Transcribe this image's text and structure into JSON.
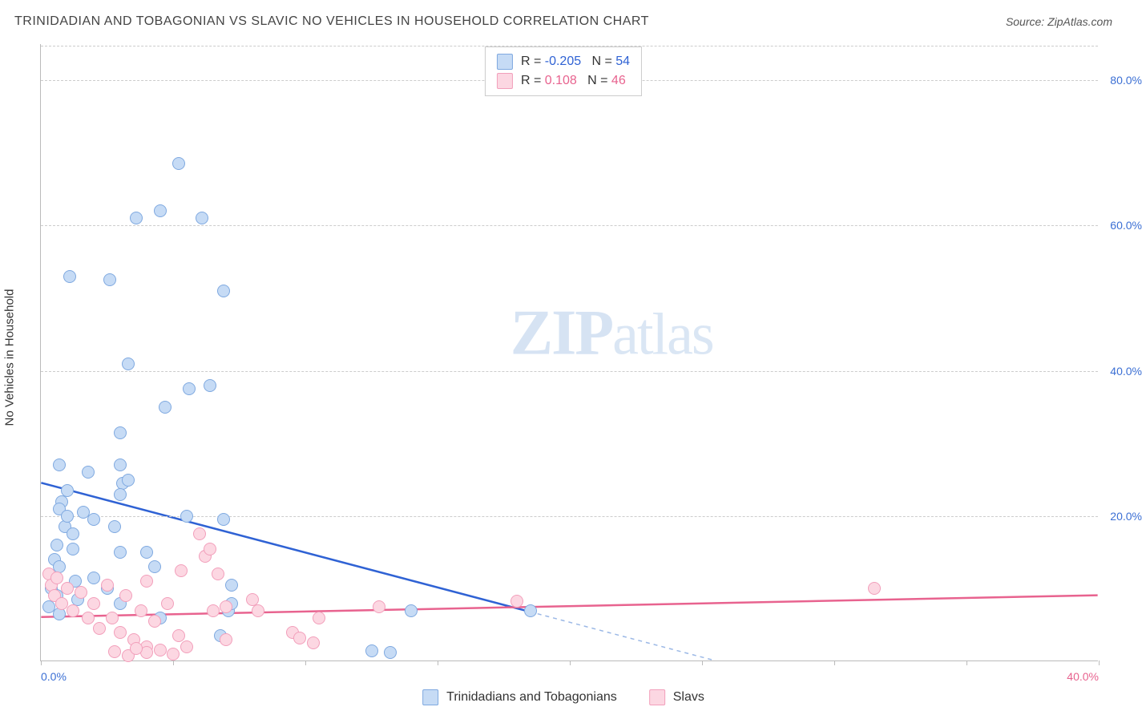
{
  "title": "TRINIDADIAN AND TOBAGONIAN VS SLAVIC NO VEHICLES IN HOUSEHOLD CORRELATION CHART",
  "source": "Source: ZipAtlas.com",
  "y_label": "No Vehicles in Household",
  "watermark": {
    "part1": "ZIP",
    "part2": "atlas"
  },
  "chart": {
    "type": "scatter",
    "xlim": [
      0,
      40
    ],
    "ylim": [
      0,
      85
    ],
    "x_ticks": [
      0,
      5,
      10,
      15,
      20,
      25,
      30,
      35,
      40
    ],
    "x_tick_labels": {
      "0": "0.0%",
      "40": "40.0%"
    },
    "y_ticks": [
      20,
      40,
      60,
      80
    ],
    "y_tick_labels": {
      "20": "20.0%",
      "40": "40.0%",
      "60": "60.0%",
      "80": "80.0%"
    },
    "y_tick_color": "#3b6fd4",
    "x_tick_color_left": "#3b6fd4",
    "x_tick_color_right": "#e8638f",
    "grid_color": "#cccccc",
    "background": "#ffffff",
    "marker_radius": 8,
    "marker_border_width": 1.5,
    "series": [
      {
        "name": "Trinidadians and Tobagonians",
        "fill": "#c6dbf5",
        "stroke": "#7fa9e0",
        "trend_color": "#2f62d4",
        "trend_dash_color": "#9bb8e6",
        "R": "-0.205",
        "N": "54",
        "trend": {
          "x1": 0,
          "y1": 24.5,
          "x2": 25.5,
          "y2": 0,
          "solid_until_x": 18.5
        },
        "points": [
          [
            5.2,
            68.5
          ],
          [
            3.6,
            61.0
          ],
          [
            4.5,
            62.0
          ],
          [
            6.1,
            61.0
          ],
          [
            1.1,
            53.0
          ],
          [
            2.6,
            52.5
          ],
          [
            6.9,
            51.0
          ],
          [
            3.3,
            41.0
          ],
          [
            5.6,
            37.5
          ],
          [
            4.7,
            35.0
          ],
          [
            6.4,
            38.0
          ],
          [
            3.0,
            31.5
          ],
          [
            0.7,
            27.0
          ],
          [
            3.0,
            27.0
          ],
          [
            3.1,
            24.5
          ],
          [
            3.3,
            25.0
          ],
          [
            0.8,
            22.0
          ],
          [
            3.0,
            23.0
          ],
          [
            0.7,
            21.0
          ],
          [
            1.6,
            20.5
          ],
          [
            0.9,
            18.5
          ],
          [
            1.0,
            20.0
          ],
          [
            1.2,
            17.5
          ],
          [
            0.6,
            16.0
          ],
          [
            0.5,
            14.0
          ],
          [
            0.7,
            13.0
          ],
          [
            1.2,
            15.5
          ],
          [
            2.0,
            19.5
          ],
          [
            2.8,
            18.5
          ],
          [
            3.0,
            15.0
          ],
          [
            4.0,
            15.0
          ],
          [
            4.3,
            13.0
          ],
          [
            1.3,
            11.0
          ],
          [
            2.0,
            11.5
          ],
          [
            0.4,
            10.0
          ],
          [
            0.6,
            9.0
          ],
          [
            1.4,
            8.5
          ],
          [
            2.5,
            10.0
          ],
          [
            3.0,
            8.0
          ],
          [
            0.7,
            6.5
          ],
          [
            0.3,
            7.5
          ],
          [
            4.5,
            6.0
          ],
          [
            7.1,
            7.0
          ],
          [
            6.8,
            3.5
          ],
          [
            7.2,
            10.5
          ],
          [
            14.0,
            7.0
          ],
          [
            12.5,
            1.4
          ],
          [
            13.2,
            1.2
          ],
          [
            18.5,
            6.9
          ],
          [
            7.2,
            8.0
          ],
          [
            1.0,
            23.5
          ],
          [
            1.8,
            26.0
          ],
          [
            5.5,
            20.0
          ],
          [
            6.9,
            19.5
          ]
        ]
      },
      {
        "name": "Slavs",
        "fill": "#fcd7e2",
        "stroke": "#f29fbb",
        "trend_color": "#e8638f",
        "R": "0.108",
        "N": "46",
        "trend": {
          "x1": 0,
          "y1": 6.0,
          "x2": 40,
          "y2": 9.0,
          "solid_until_x": 40
        },
        "points": [
          [
            0.3,
            12.0
          ],
          [
            0.4,
            10.5
          ],
          [
            0.5,
            9.0
          ],
          [
            0.6,
            11.5
          ],
          [
            0.8,
            8.0
          ],
          [
            1.0,
            10.0
          ],
          [
            1.2,
            7.0
          ],
          [
            1.5,
            9.5
          ],
          [
            1.8,
            6.0
          ],
          [
            2.0,
            8.0
          ],
          [
            2.2,
            4.5
          ],
          [
            2.5,
            10.5
          ],
          [
            2.7,
            6.0
          ],
          [
            3.0,
            4.0
          ],
          [
            3.2,
            9.0
          ],
          [
            3.5,
            3.0
          ],
          [
            3.8,
            7.0
          ],
          [
            4.0,
            2.0
          ],
          [
            4.3,
            5.5
          ],
          [
            4.5,
            1.5
          ],
          [
            4.8,
            8.0
          ],
          [
            5.2,
            3.5
          ],
          [
            5.5,
            2.0
          ],
          [
            4.0,
            11.0
          ],
          [
            6.0,
            17.5
          ],
          [
            6.2,
            14.5
          ],
          [
            6.4,
            15.5
          ],
          [
            7.0,
            3.0
          ],
          [
            7.0,
            7.5
          ],
          [
            6.5,
            7.0
          ],
          [
            8.0,
            8.5
          ],
          [
            8.2,
            7.0
          ],
          [
            9.5,
            4.0
          ],
          [
            9.8,
            3.2
          ],
          [
            10.5,
            6.0
          ],
          [
            10.3,
            2.5
          ],
          [
            12.8,
            7.5
          ],
          [
            18.0,
            8.3
          ],
          [
            31.5,
            10.0
          ],
          [
            5.0,
            1.0
          ],
          [
            4.0,
            1.2
          ],
          [
            3.3,
            0.8
          ],
          [
            2.8,
            1.3
          ],
          [
            3.6,
            1.8
          ],
          [
            5.3,
            12.5
          ],
          [
            6.7,
            12.0
          ]
        ]
      }
    ]
  },
  "r_legend_labels": {
    "R_prefix": "R = ",
    "N_prefix": "N = "
  }
}
